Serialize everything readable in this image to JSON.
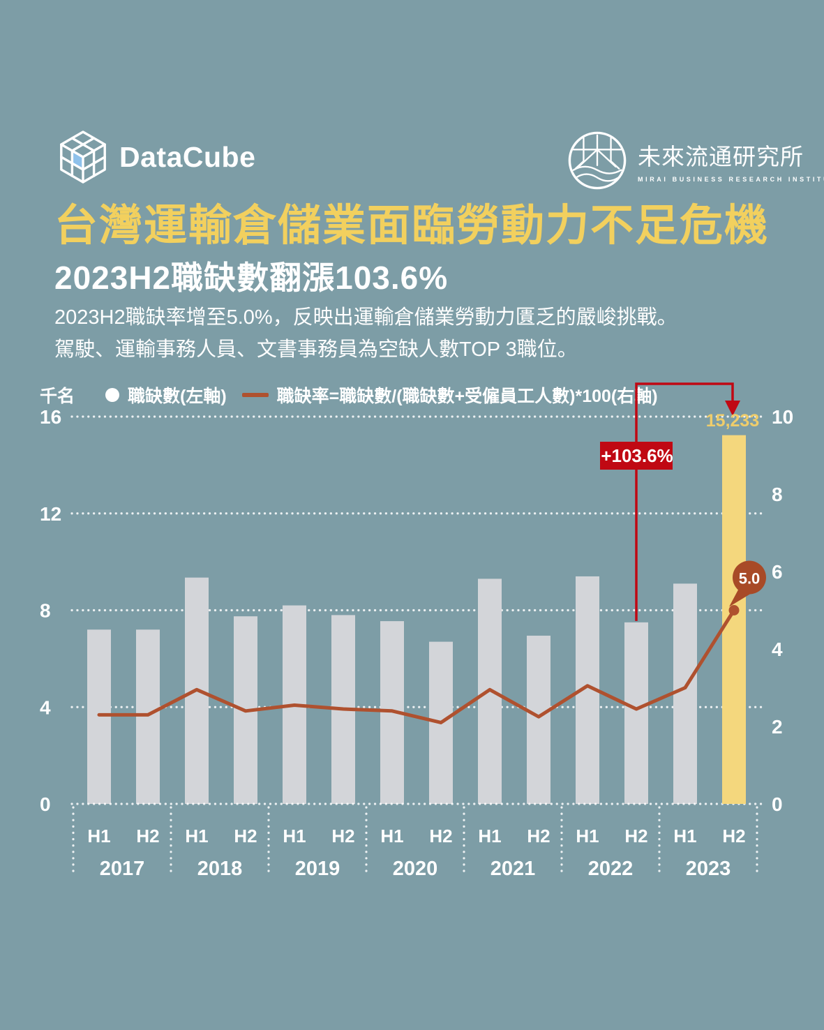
{
  "header": {
    "datacube_wordmark": "DataCube",
    "mirai_name": "未來流通研究所",
    "mirai_subname": "MIRAI BUSINESS RESEARCH INSTITUTE"
  },
  "title": {
    "main": "台灣運輸倉儲業面臨勞動力不足危機",
    "sub": "2023H2職缺數翻漲103.6%"
  },
  "description": {
    "line1": "2023H2職缺率增至5.0%，反映出運輸倉儲業勞動力匱乏的嚴峻挑戰。",
    "line2": "駕駛、運輸事務人員、文書事務員為空缺人數TOP 3職位。"
  },
  "legend": {
    "unit_label": "千名",
    "series1_label": "職缺數(左軸)",
    "series2_label": "職缺率=職缺數/(職缺數+受僱員工人數)*100(右軸)"
  },
  "annotations": {
    "growth_label": "+103.6%",
    "growth_from_index": 11,
    "peak_value_label": "15,233",
    "peak_rate_label": "5.0"
  },
  "chart_data": {
    "type": "bar",
    "subtype": "combo-bar-line",
    "categories": [
      {
        "year": "2017",
        "half": "H1"
      },
      {
        "year": "2017",
        "half": "H2"
      },
      {
        "year": "2018",
        "half": "H1"
      },
      {
        "year": "2018",
        "half": "H2"
      },
      {
        "year": "2019",
        "half": "H1"
      },
      {
        "year": "2019",
        "half": "H2"
      },
      {
        "year": "2020",
        "half": "H1"
      },
      {
        "year": "2020",
        "half": "H2"
      },
      {
        "year": "2021",
        "half": "H1"
      },
      {
        "year": "2021",
        "half": "H2"
      },
      {
        "year": "2022",
        "half": "H1"
      },
      {
        "year": "2022",
        "half": "H2"
      },
      {
        "year": "2023",
        "half": "H1"
      },
      {
        "year": "2023",
        "half": "H2"
      }
    ],
    "years": [
      "2017",
      "2018",
      "2019",
      "2020",
      "2021",
      "2022",
      "2023"
    ],
    "series": [
      {
        "name": "職缺數(左軸)",
        "type": "bar",
        "axis": "left",
        "unit": "千名",
        "values": [
          7.2,
          7.2,
          9.35,
          7.75,
          8.2,
          7.8,
          7.55,
          6.7,
          9.3,
          6.95,
          9.4,
          7.5,
          9.1,
          15.233
        ]
      },
      {
        "name": "職缺率=職缺數/(職缺數+受僱員工人數)*100(右軸)",
        "type": "line",
        "axis": "right",
        "unit": "%",
        "values": [
          2.3,
          2.3,
          2.95,
          2.4,
          2.55,
          2.45,
          2.4,
          2.1,
          2.95,
          2.25,
          3.05,
          2.45,
          3.0,
          5.0
        ]
      }
    ],
    "highlight_index": 13,
    "left_axis": {
      "label": "千名",
      "ticks": [
        0,
        4,
        8,
        12,
        16
      ],
      "max": 16
    },
    "right_axis": {
      "ticks": [
        0,
        2,
        4,
        6,
        8,
        10
      ],
      "max": 10
    },
    "grid": "dotted-horizontal"
  },
  "colors": {
    "background": "#7D9DA6",
    "title_yellow": "#F2D05E",
    "bar_gray": "#D3D5D9",
    "bar_highlight_yellow": "#F4D77D",
    "value_label_yellow": "#EFCD6B",
    "line_rust": "#AF512F",
    "bubble_rust": "#A84A27",
    "annotation_red": "#C00813",
    "text_white": "#FFFFFF",
    "logo_blue": "#8EC1EB"
  }
}
